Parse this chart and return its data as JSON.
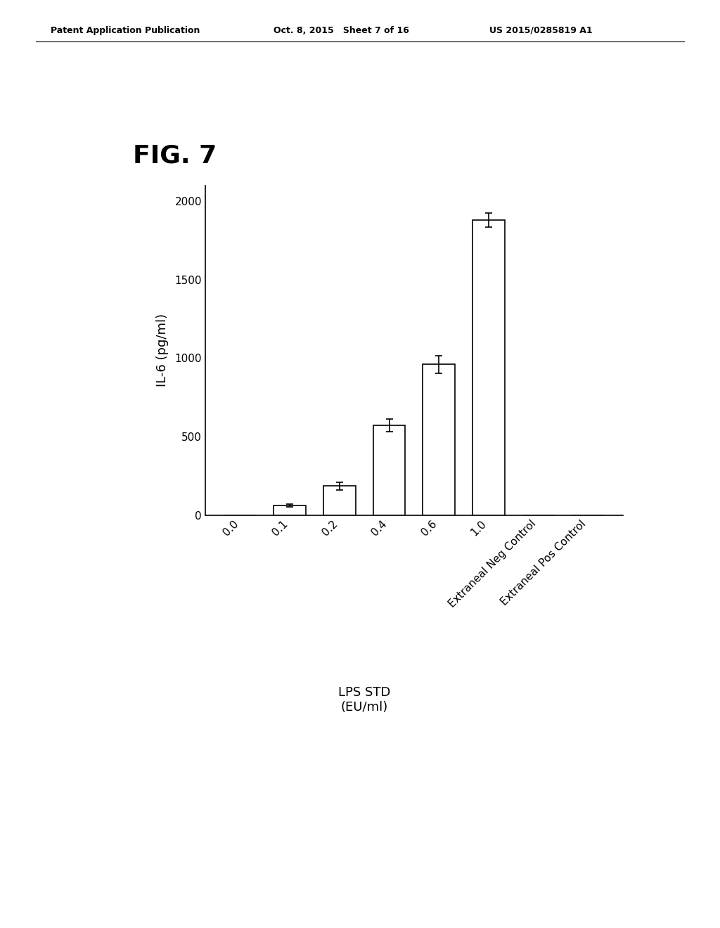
{
  "fig_label": "FIG. 7",
  "header_left": "Patent Application Publication",
  "header_mid": "Oct. 8, 2015   Sheet 7 of 16",
  "header_right": "US 2015/0285819 A1",
  "categories": [
    "0.0",
    "0.1",
    "0.2",
    "0.4",
    "0.6",
    "1.0",
    "Extraneal Neg Control",
    "Extraneal Pos Control"
  ],
  "values": [
    0,
    60,
    185,
    570,
    960,
    1880,
    0,
    0
  ],
  "errors": [
    0,
    10,
    25,
    40,
    55,
    45,
    0,
    0
  ],
  "ylabel": "IL-6 (pg/ml)",
  "xlabel_main": "LPS STD\n(EU/ml)",
  "ylim": [
    0,
    2100
  ],
  "yticks": [
    0,
    500,
    1000,
    1500,
    2000
  ],
  "bar_color": "#ffffff",
  "bar_edgecolor": "#000000",
  "background_color": "#ffffff",
  "bar_width": 0.65,
  "fig_label_fontsize": 26,
  "axis_fontsize": 13,
  "tick_fontsize": 11,
  "header_fontsize": 9
}
